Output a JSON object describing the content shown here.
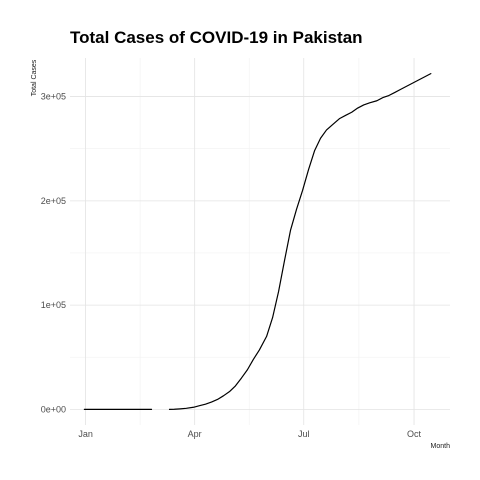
{
  "chart_data": {
    "type": "line",
    "title": "Total Cases of COVID-19 in Pakistan",
    "xlabel": "Month",
    "ylabel": "Total Cases",
    "x_ticks": [
      {
        "label": "Jan",
        "date": "2020-01-01"
      },
      {
        "label": "Apr",
        "date": "2020-04-01"
      },
      {
        "label": "Jul",
        "date": "2020-07-01"
      },
      {
        "label": "Oct",
        "date": "2020-10-01"
      }
    ],
    "y_ticks": [
      {
        "label": "0e+00",
        "value": 0
      },
      {
        "label": "1e+05",
        "value": 100000
      },
      {
        "label": "2e+05",
        "value": 200000
      },
      {
        "label": "3e+05",
        "value": 300000
      }
    ],
    "xlim": [
      "2019-12-19",
      "2020-10-31"
    ],
    "ylim": [
      -15000,
      337000
    ],
    "grid": true,
    "series": [
      {
        "segments": [
          {
            "x": [
              "2019-12-31",
              "2020-01-15",
              "2020-02-01",
              "2020-02-15",
              "2020-02-25"
            ],
            "y": [
              0,
              0,
              0,
              0,
              0
            ]
          },
          {
            "x": [
              "2020-03-11",
              "2020-03-15",
              "2020-03-20",
              "2020-03-25",
              "2020-03-31",
              "2020-04-05",
              "2020-04-10",
              "2020-04-15",
              "2020-04-20",
              "2020-04-25",
              "2020-04-30",
              "2020-05-05",
              "2020-05-10",
              "2020-05-15",
              "2020-05-20",
              "2020-05-25",
              "2020-05-31",
              "2020-06-05",
              "2020-06-10",
              "2020-06-15",
              "2020-06-20",
              "2020-06-25",
              "2020-06-30",
              "2020-07-05",
              "2020-07-10",
              "2020-07-15",
              "2020-07-20",
              "2020-07-25",
              "2020-07-31",
              "2020-08-05",
              "2020-08-10",
              "2020-08-15",
              "2020-08-20",
              "2020-08-25",
              "2020-08-31",
              "2020-09-05",
              "2020-09-10",
              "2020-09-15",
              "2020-09-20",
              "2020-09-25",
              "2020-09-30",
              "2020-10-05",
              "2020-10-10",
              "2020-10-15"
            ],
            "y": [
              0,
              100,
              500,
              1000,
              2000,
              3500,
              5000,
              7000,
              9500,
              13000,
              17000,
              22500,
              30000,
              38000,
              48000,
              57000,
              70000,
              88000,
              113000,
              143000,
              172000,
              192000,
              210000,
              230000,
              248000,
              260000,
              268000,
              273000,
              279000,
              282000,
              285000,
              289000,
              292000,
              294000,
              296000,
              299000,
              301000,
              304000,
              307000,
              310000,
              313000,
              316000,
              319000,
              322000
            ]
          }
        ]
      }
    ]
  }
}
